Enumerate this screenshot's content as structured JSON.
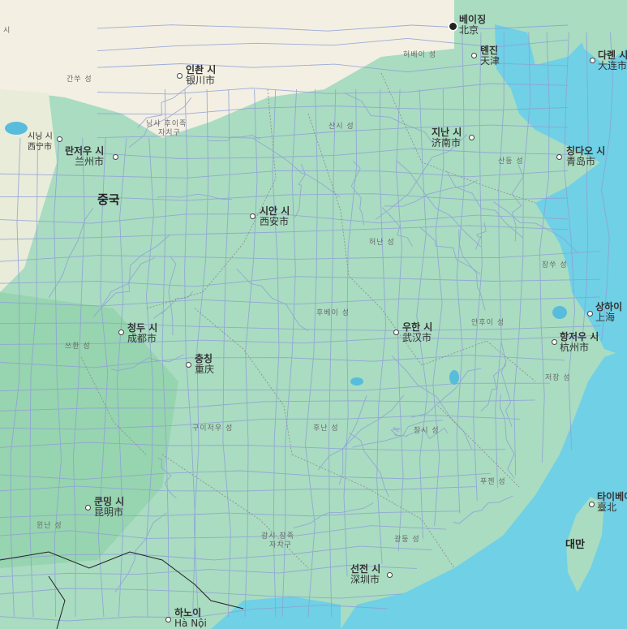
{
  "colors": {
    "land": "#a9dcc1",
    "arid": "#f3efe3",
    "sea": "#6fd0e6",
    "lake": "#58bcdc",
    "road": "#8f9fd6",
    "forest": "#8ccfa6"
  },
  "country_labels": {
    "china": "중국",
    "taiwan": "대만"
  },
  "cities": {
    "beijing": {
      "ko": "베이징",
      "local": "北京"
    },
    "tianjin": {
      "ko": "톈진",
      "local": "天津"
    },
    "dalian": {
      "ko": "다롄 시",
      "local": "大连市"
    },
    "yinchuan": {
      "ko": "인촨 시",
      "local": "银川市"
    },
    "xining": {
      "ko": "시닝 시",
      "local": "西宁市"
    },
    "lanzhou": {
      "ko": "란저우 시",
      "local": "兰州市"
    },
    "jinan": {
      "ko": "지난 시",
      "local": "济南市"
    },
    "qingdao": {
      "ko": "칭다오 시",
      "local": "青岛市"
    },
    "xian": {
      "ko": "시안 시",
      "local": "西安市"
    },
    "shanghai": {
      "ko": "상하이",
      "local": "上海"
    },
    "hangzhou": {
      "ko": "항저우 시",
      "local": "杭州市"
    },
    "wuhan": {
      "ko": "우한 시",
      "local": "武汉市"
    },
    "chengdu": {
      "ko": "청두 시",
      "local": "成都市"
    },
    "chongqing": {
      "ko": "충칭",
      "local": "重庆"
    },
    "kunming": {
      "ko": "쿤밍 시",
      "local": "昆明市"
    },
    "shenzhen": {
      "ko": "선전 시",
      "local": "深圳市"
    },
    "taipei": {
      "ko": "타이베이",
      "local": "臺北"
    },
    "hanoi": {
      "ko": "하노이",
      "local": "Hà Nội"
    }
  },
  "provinces": {
    "hebei": "허베이 성",
    "gansu": "간쑤 성",
    "ningxia_1": "닝샤 후이족",
    "ningxia_2": "자치구",
    "shanxi": "산시 성",
    "shandong": "산둥 성",
    "henan": "허난 성",
    "jiangsu": "장쑤 성",
    "hubei": "후베이 성",
    "anhui": "안후이 성",
    "sichuan": "쓰촨 성",
    "zhejiang": "저장 성",
    "guizhou": "구이저우 성",
    "hunan": "후난 성",
    "jiangxi": "장시 성",
    "fujian": "푸젠 성",
    "yunnan": "윈난 성",
    "guangxi_1": "광시 장족",
    "guangxi_2": "자치구",
    "guangdong": "광둥 성",
    "far_nw": "시"
  }
}
